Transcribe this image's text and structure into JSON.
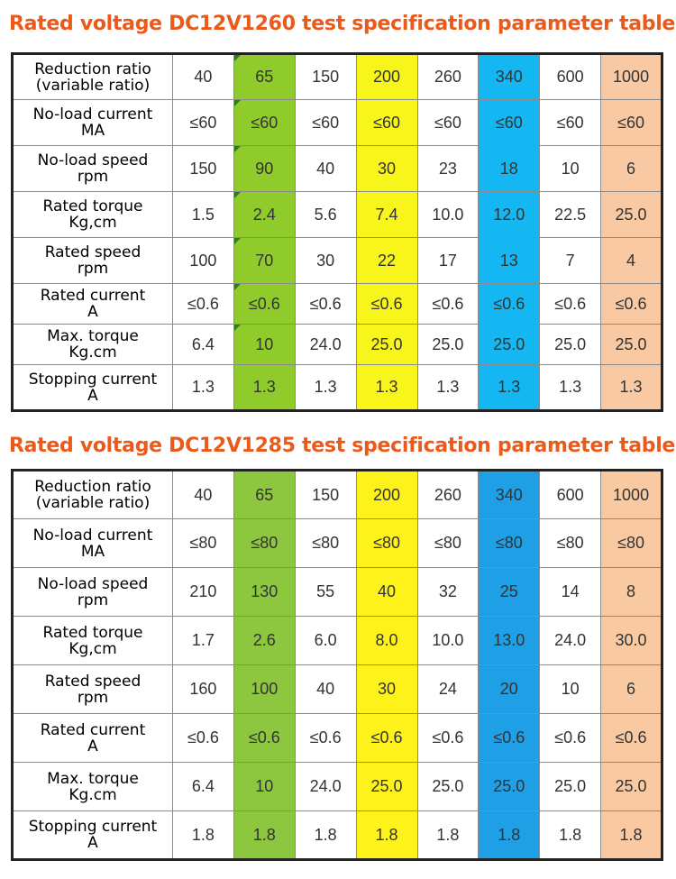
{
  "colors": {
    "title": "#ea5a1b",
    "table1_columns": [
      "#ffffff",
      "#8fcb2a",
      "#ffffff",
      "#f7f519",
      "#ffffff",
      "#14b7f1",
      "#ffffff",
      "#f8c9a3"
    ],
    "table2_columns": [
      "#ffffff",
      "#8dc63f",
      "#ffffff",
      "#fdf31a",
      "#ffffff",
      "#1e9fe6",
      "#ffffff",
      "#f9c9a1"
    ]
  },
  "tables": [
    {
      "title": "Rated voltage DC12V1260 test specification parameter table",
      "rows": [
        {
          "label": [
            "Reduction ratio",
            "(variable ratio)"
          ],
          "values": [
            "40",
            "65",
            "150",
            "200",
            "260",
            "340",
            "600",
            "1000"
          ]
        },
        {
          "label": [
            "No-load current",
            "MA"
          ],
          "values": [
            "≤60",
            "≤60",
            "≤60",
            "≤60",
            "≤60",
            "≤60",
            "≤60",
            "≤60"
          ]
        },
        {
          "label": [
            "No-load speed",
            "rpm"
          ],
          "values": [
            "150",
            "90",
            "40",
            "30",
            "23",
            "18",
            "10",
            "6"
          ]
        },
        {
          "label": [
            "Rated torque",
            "Kg,cm"
          ],
          "values": [
            "1.5",
            "2.4",
            "5.6",
            "7.4",
            "10.0",
            "12.0",
            "22.5",
            "25.0"
          ]
        },
        {
          "label": [
            "Rated speed",
            "rpm"
          ],
          "values": [
            "100",
            "70",
            "30",
            "22",
            "17",
            "13",
            "7",
            "4"
          ]
        },
        {
          "label": [
            "Rated current",
            "A"
          ],
          "values": [
            "≤0.6",
            "≤0.6",
            "≤0.6",
            "≤0.6",
            "≤0.6",
            "≤0.6",
            "≤0.6",
            "≤0.6"
          ]
        },
        {
          "label": [
            "Max. torque",
            "Kg.cm"
          ],
          "values": [
            "6.4",
            "10",
            "24.0",
            "25.0",
            "25.0",
            "25.0",
            "25.0",
            "25.0"
          ]
        },
        {
          "label": [
            "Stopping current",
            "A"
          ],
          "values": [
            "1.3",
            "1.3",
            "1.3",
            "1.3",
            "1.3",
            "1.3",
            "1.3",
            "1.3"
          ]
        }
      ]
    },
    {
      "title": "Rated voltage DC12V1285 test specification parameter table",
      "rows": [
        {
          "label": [
            "Reduction ratio",
            "(variable ratio)"
          ],
          "values": [
            "40",
            "65",
            "150",
            "200",
            "260",
            "340",
            "600",
            "1000"
          ]
        },
        {
          "label": [
            "No-load current",
            "MA"
          ],
          "values": [
            "≤80",
            "≤80",
            "≤80",
            "≤80",
            "≤80",
            "≤80",
            "≤80",
            "≤80"
          ]
        },
        {
          "label": [
            "No-load speed",
            "rpm"
          ],
          "values": [
            "210",
            "130",
            "55",
            "40",
            "32",
            "25",
            "14",
            "8"
          ]
        },
        {
          "label": [
            "Rated torque",
            "Kg,cm"
          ],
          "values": [
            "1.7",
            "2.6",
            "6.0",
            "8.0",
            "10.0",
            "13.0",
            "24.0",
            "30.0"
          ]
        },
        {
          "label": [
            "Rated speed",
            "rpm"
          ],
          "values": [
            "160",
            "100",
            "40",
            "30",
            "24",
            "20",
            "10",
            "6"
          ]
        },
        {
          "label": [
            "Rated current",
            "A"
          ],
          "values": [
            "≤0.6",
            "≤0.6",
            "≤0.6",
            "≤0.6",
            "≤0.6",
            "≤0.6",
            "≤0.6",
            "≤0.6"
          ]
        },
        {
          "label": [
            "Max. torque",
            "Kg.cm"
          ],
          "values": [
            "6.4",
            "10",
            "24.0",
            "25.0",
            "25.0",
            "25.0",
            "25.0",
            "25.0"
          ]
        },
        {
          "label": [
            "Stopping current",
            "A"
          ],
          "values": [
            "1.8",
            "1.8",
            "1.8",
            "1.8",
            "1.8",
            "1.8",
            "1.8",
            "1.8"
          ]
        }
      ]
    }
  ]
}
